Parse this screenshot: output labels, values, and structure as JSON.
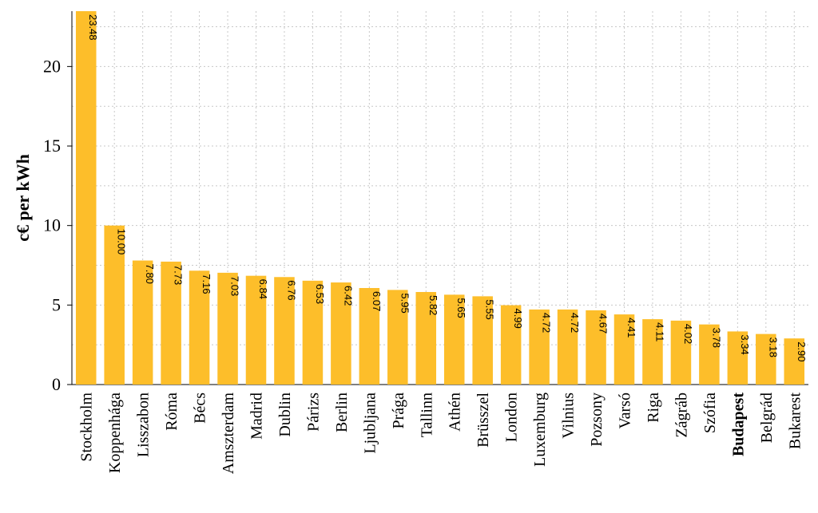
{
  "chart_data": {
    "type": "bar",
    "title": "",
    "xlabel": "",
    "ylabel": "c€  per kWh",
    "ylim": [
      0,
      23.48
    ],
    "yticks": [
      0,
      5,
      10,
      15,
      20
    ],
    "grid": true,
    "bar_color": "#FDBE2A",
    "categories": [
      "Stockholm",
      "Koppenhága",
      "Lisszabon",
      "Róma",
      "Bécs",
      "Amszterdam",
      "Madrid",
      "Dublin",
      "Párizs",
      "Berlin",
      "Ljubljana",
      "Prága",
      "Tallinn",
      "Athén",
      "Brüsszel",
      "London",
      "Luxemburg",
      "Vilnius",
      "Pozsony",
      "Varsó",
      "Riga",
      "Zágráb",
      "Szófia",
      "Budapest",
      "Belgrád",
      "Bukarest"
    ],
    "values": [
      23.48,
      10.0,
      7.8,
      7.73,
      7.16,
      7.03,
      6.84,
      6.76,
      6.53,
      6.42,
      6.07,
      5.95,
      5.82,
      5.65,
      5.55,
      4.99,
      4.72,
      4.72,
      4.67,
      4.41,
      4.11,
      4.02,
      3.78,
      3.34,
      3.18,
      2.9
    ],
    "value_labels": [
      "23.48",
      "10.00",
      "7.80",
      "7.73",
      "7.16",
      "7.03",
      "6.84",
      "6.76",
      "6.53",
      "6.42",
      "6.07",
      "5.95",
      "5.82",
      "5.65",
      "5.55",
      "4.99",
      "4.72",
      "4.72",
      "4.67",
      "4.41",
      "4.11",
      "4.02",
      "3.78",
      "3.34",
      "3.18",
      "2.90"
    ],
    "highlighted_category": "Budapest"
  }
}
